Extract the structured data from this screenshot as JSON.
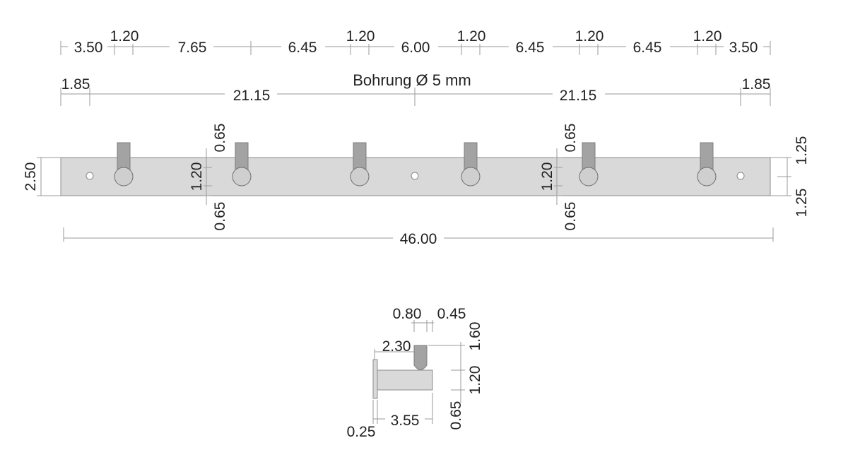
{
  "drill_label": "Bohrung Ø 5 mm",
  "top_row": {
    "labels": [
      "3.50",
      "1.20",
      "7.65",
      "6.45",
      "1.20",
      "6.00",
      "1.20",
      "6.45",
      "1.20",
      "6.45",
      "1.20",
      "3.50"
    ]
  },
  "hole_row": {
    "labels": [
      "1.85",
      "21.15",
      "21.15",
      "1.85"
    ]
  },
  "front_view": {
    "height_label": "2.50",
    "total_length_label": "46.00",
    "hook_a": {
      "upper": "0.65",
      "middle": "1.20",
      "lower": "0.65"
    },
    "hook_b": {
      "upper": "0.65",
      "middle": "1.20",
      "lower": "0.65"
    },
    "right_upper": "1.25",
    "right_lower": "1.25"
  },
  "side_view": {
    "width_a": "0.80",
    "width_b": "0.45",
    "reach": "2.30",
    "base_thickness": "0.25",
    "depth": "3.55",
    "height_top": "1.60",
    "height_mid": "1.20",
    "height_low": "0.65"
  },
  "colors": {
    "rail": "#d9d9d9",
    "hook": "#a3a3a3",
    "dimension_line": "#9a9a9a"
  }
}
